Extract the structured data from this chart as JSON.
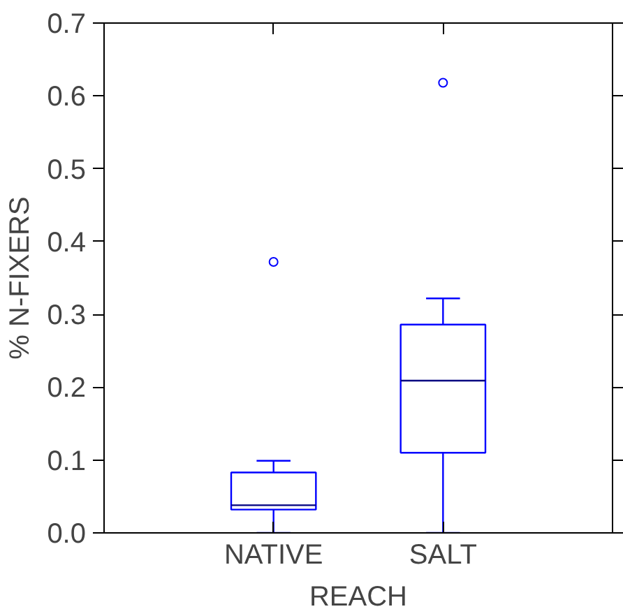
{
  "chart_data": {
    "type": "box",
    "xlabel": "REACH",
    "ylabel": "% N-FIXERS",
    "categories": [
      "NATIVE",
      "SALT"
    ],
    "boxes": [
      {
        "low": 0.0,
        "q1": 0.032,
        "median": 0.038,
        "q3": 0.083,
        "high": 0.099,
        "outliers": [
          0.372
        ]
      },
      {
        "low": 0.0,
        "q1": 0.11,
        "median": 0.209,
        "q3": 0.286,
        "high": 0.322,
        "outliers": [
          0.618
        ]
      }
    ],
    "color": "#0000ff",
    "ylim": [
      0,
      0.7
    ],
    "yticks": [
      {
        "value": 0,
        "label": "0.0"
      },
      0.1,
      0.2,
      0.3,
      0.4,
      0.5,
      0.6,
      0.7
    ],
    "grid": false
  }
}
